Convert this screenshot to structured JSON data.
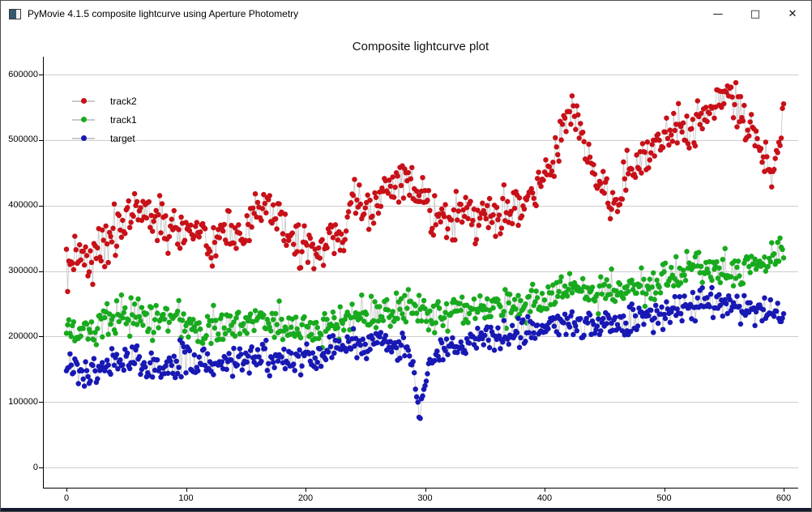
{
  "window": {
    "title": "PyMovie 4.1.5 composite lightcurve using Aperture Photometry",
    "controls": {
      "minimize": "—",
      "maximize": "□",
      "close": "✕"
    }
  },
  "chart_data": {
    "type": "scatter",
    "title": "Composite lightcurve plot",
    "xlabel": "",
    "ylabel": "",
    "xlim": [
      -20,
      612
    ],
    "ylim": [
      -31000,
      627000
    ],
    "x_ticks": [
      0,
      100,
      200,
      300,
      400,
      500,
      600
    ],
    "y_ticks": [
      0,
      100000,
      200000,
      300000,
      400000,
      500000,
      600000
    ],
    "grid": "horizontal-only",
    "grid_color": "#cdcdcd",
    "spine_color": "#000000",
    "connector_line_color": "#c9c9c9",
    "marker_diameter_px": 6.5,
    "points_per_series": 601,
    "x_step": 1,
    "legend": {
      "position": "upper-left",
      "entries": [
        {
          "label": "track2",
          "color": "#c81018"
        },
        {
          "label": "track1",
          "color": "#18aa1e"
        },
        {
          "label": "target",
          "color": "#1818b4"
        }
      ]
    },
    "series": [
      {
        "name": "track2",
        "color": "#c81018",
        "noise_sigma": 17000,
        "trend": [
          [
            0,
            298000
          ],
          [
            5,
            320000
          ],
          [
            10,
            330000
          ],
          [
            15,
            322000
          ],
          [
            20,
            318000
          ],
          [
            25,
            328000
          ],
          [
            30,
            332000
          ],
          [
            35,
            345000
          ],
          [
            40,
            360000
          ],
          [
            50,
            385000
          ],
          [
            57,
            400000
          ],
          [
            65,
            392000
          ],
          [
            75,
            383000
          ],
          [
            85,
            362000
          ],
          [
            95,
            358000
          ],
          [
            105,
            368000
          ],
          [
            115,
            345000
          ],
          [
            125,
            338000
          ],
          [
            135,
            355000
          ],
          [
            145,
            345000
          ],
          [
            152,
            370000
          ],
          [
            160,
            385000
          ],
          [
            168,
            395000
          ],
          [
            175,
            388000
          ],
          [
            185,
            360000
          ],
          [
            195,
            340000
          ],
          [
            205,
            322000
          ],
          [
            215,
            335000
          ],
          [
            225,
            348000
          ],
          [
            232,
            360000
          ],
          [
            240,
            405000
          ],
          [
            248,
            400000
          ],
          [
            255,
            392000
          ],
          [
            265,
            415000
          ],
          [
            275,
            435000
          ],
          [
            283,
            442000
          ],
          [
            290,
            425000
          ],
          [
            300,
            405000
          ],
          [
            310,
            382000
          ],
          [
            320,
            372000
          ],
          [
            330,
            388000
          ],
          [
            340,
            378000
          ],
          [
            350,
            395000
          ],
          [
            360,
            382000
          ],
          [
            370,
            400000
          ],
          [
            378,
            395000
          ],
          [
            388,
            415000
          ],
          [
            395,
            425000
          ],
          [
            400,
            448000
          ],
          [
            408,
            475000
          ],
          [
            415,
            515000
          ],
          [
            420,
            545000
          ],
          [
            425,
            532000
          ],
          [
            432,
            498000
          ],
          [
            438,
            475000
          ],
          [
            445,
            450000
          ],
          [
            452,
            420000
          ],
          [
            458,
            398000
          ],
          [
            465,
            432000
          ],
          [
            472,
            455000
          ],
          [
            480,
            468000
          ],
          [
            488,
            475000
          ],
          [
            495,
            492000
          ],
          [
            502,
            505000
          ],
          [
            510,
            522000
          ],
          [
            517,
            512000
          ],
          [
            525,
            518000
          ],
          [
            533,
            525000
          ],
          [
            540,
            548000
          ],
          [
            548,
            565000
          ],
          [
            555,
            572000
          ],
          [
            562,
            552000
          ],
          [
            568,
            525000
          ],
          [
            575,
            512000
          ],
          [
            582,
            472000
          ],
          [
            588,
            452000
          ],
          [
            592,
            462000
          ],
          [
            596,
            510000
          ],
          [
            600,
            528000
          ]
        ]
      },
      {
        "name": "track1",
        "color": "#18aa1e",
        "noise_sigma": 13000,
        "trend": [
          [
            0,
            205000
          ],
          [
            10,
            212000
          ],
          [
            20,
            215000
          ],
          [
            30,
            222000
          ],
          [
            40,
            228000
          ],
          [
            50,
            232000
          ],
          [
            60,
            235000
          ],
          [
            70,
            230000
          ],
          [
            80,
            225000
          ],
          [
            90,
            222000
          ],
          [
            100,
            220000
          ],
          [
            110,
            215000
          ],
          [
            120,
            213000
          ],
          [
            130,
            218000
          ],
          [
            140,
            220000
          ],
          [
            150,
            225000
          ],
          [
            160,
            230000
          ],
          [
            170,
            225000
          ],
          [
            180,
            220000
          ],
          [
            190,
            212000
          ],
          [
            200,
            208000
          ],
          [
            210,
            212000
          ],
          [
            220,
            215000
          ],
          [
            230,
            222000
          ],
          [
            240,
            232000
          ],
          [
            250,
            235000
          ],
          [
            260,
            235000
          ],
          [
            270,
            240000
          ],
          [
            280,
            245000
          ],
          [
            290,
            238000
          ],
          [
            300,
            235000
          ],
          [
            310,
            230000
          ],
          [
            320,
            230000
          ],
          [
            330,
            235000
          ],
          [
            340,
            240000
          ],
          [
            350,
            243000
          ],
          [
            360,
            245000
          ],
          [
            370,
            248000
          ],
          [
            380,
            250000
          ],
          [
            390,
            252000
          ],
          [
            400,
            255000
          ],
          [
            410,
            262000
          ],
          [
            420,
            272000
          ],
          [
            430,
            268000
          ],
          [
            440,
            265000
          ],
          [
            450,
            268000
          ],
          [
            460,
            270000
          ],
          [
            470,
            272000
          ],
          [
            480,
            275000
          ],
          [
            490,
            280000
          ],
          [
            500,
            285000
          ],
          [
            510,
            292000
          ],
          [
            520,
            298000
          ],
          [
            530,
            305000
          ],
          [
            540,
            308000
          ],
          [
            550,
            302000
          ],
          [
            560,
            298000
          ],
          [
            570,
            305000
          ],
          [
            580,
            308000
          ],
          [
            590,
            318000
          ],
          [
            600,
            332000
          ]
        ]
      },
      {
        "name": "target",
        "color": "#1818b4",
        "noise_sigma": 11000,
        "noise_scale_regions": [
          [
            286,
            308,
            0.45
          ]
        ],
        "trend": [
          [
            0,
            148000
          ],
          [
            10,
            145000
          ],
          [
            20,
            143000
          ],
          [
            30,
            150000
          ],
          [
            40,
            158000
          ],
          [
            50,
            163000
          ],
          [
            60,
            165000
          ],
          [
            70,
            160000
          ],
          [
            80,
            158000
          ],
          [
            90,
            162000
          ],
          [
            100,
            165000
          ],
          [
            110,
            160000
          ],
          [
            120,
            158000
          ],
          [
            130,
            162000
          ],
          [
            140,
            165000
          ],
          [
            150,
            168000
          ],
          [
            160,
            170000
          ],
          [
            170,
            165000
          ],
          [
            180,
            163000
          ],
          [
            190,
            168000
          ],
          [
            200,
            170000
          ],
          [
            210,
            173000
          ],
          [
            220,
            176000
          ],
          [
            230,
            180000
          ],
          [
            240,
            185000
          ],
          [
            250,
            192000
          ],
          [
            260,
            196000
          ],
          [
            270,
            192000
          ],
          [
            280,
            188000
          ],
          [
            285,
            182000
          ],
          [
            290,
            158000
          ],
          [
            292,
            120000
          ],
          [
            294,
            100000
          ],
          [
            296,
            66000
          ],
          [
            297,
            98000
          ],
          [
            298,
            105000
          ],
          [
            300,
            128000
          ],
          [
            303,
            155000
          ],
          [
            306,
            170000
          ],
          [
            310,
            168000
          ],
          [
            320,
            178000
          ],
          [
            330,
            185000
          ],
          [
            340,
            192000
          ],
          [
            350,
            196000
          ],
          [
            360,
            200000
          ],
          [
            370,
            203000
          ],
          [
            380,
            205000
          ],
          [
            390,
            210000
          ],
          [
            400,
            214000
          ],
          [
            410,
            220000
          ],
          [
            420,
            226000
          ],
          [
            430,
            218000
          ],
          [
            440,
            215000
          ],
          [
            450,
            218000
          ],
          [
            460,
            220000
          ],
          [
            470,
            222000
          ],
          [
            480,
            226000
          ],
          [
            490,
            230000
          ],
          [
            500,
            235000
          ],
          [
            510,
            240000
          ],
          [
            520,
            245000
          ],
          [
            530,
            250000
          ],
          [
            540,
            255000
          ],
          [
            550,
            252000
          ],
          [
            560,
            248000
          ],
          [
            570,
            242000
          ],
          [
            580,
            240000
          ],
          [
            590,
            238000
          ],
          [
            600,
            235000
          ]
        ]
      }
    ]
  }
}
